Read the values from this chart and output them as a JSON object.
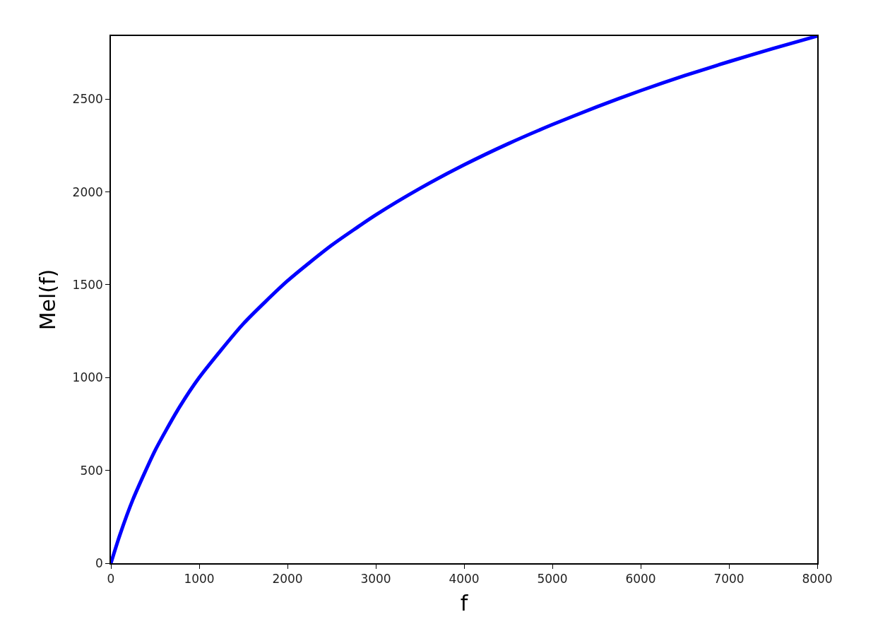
{
  "chart_data": {
    "type": "line",
    "xlabel": "f",
    "ylabel": "Mel(f)",
    "x": [
      0,
      100,
      250,
      500,
      750,
      1000,
      1500,
      2000,
      2500,
      3000,
      3500,
      4000,
      4500,
      5000,
      5500,
      6000,
      6500,
      7000,
      7500,
      8000
    ],
    "series": [
      {
        "color": "#0000ff",
        "values": [
          0,
          150,
          344,
          607,
          820,
          1000,
          1290,
          1521,
          1713,
          1876,
          2019,
          2146,
          2260,
          2363,
          2458,
          2546,
          2627,
          2702,
          2773,
          2840
        ]
      }
    ],
    "xlim": [
      0,
      8000
    ],
    "ylim": [
      0,
      2840
    ],
    "xticks": [
      0,
      1000,
      2000,
      3000,
      4000,
      5000,
      6000,
      7000,
      8000
    ],
    "yticks": [
      0,
      500,
      1000,
      1500,
      2000,
      2500
    ],
    "marker": "none",
    "line_style": "solid"
  }
}
